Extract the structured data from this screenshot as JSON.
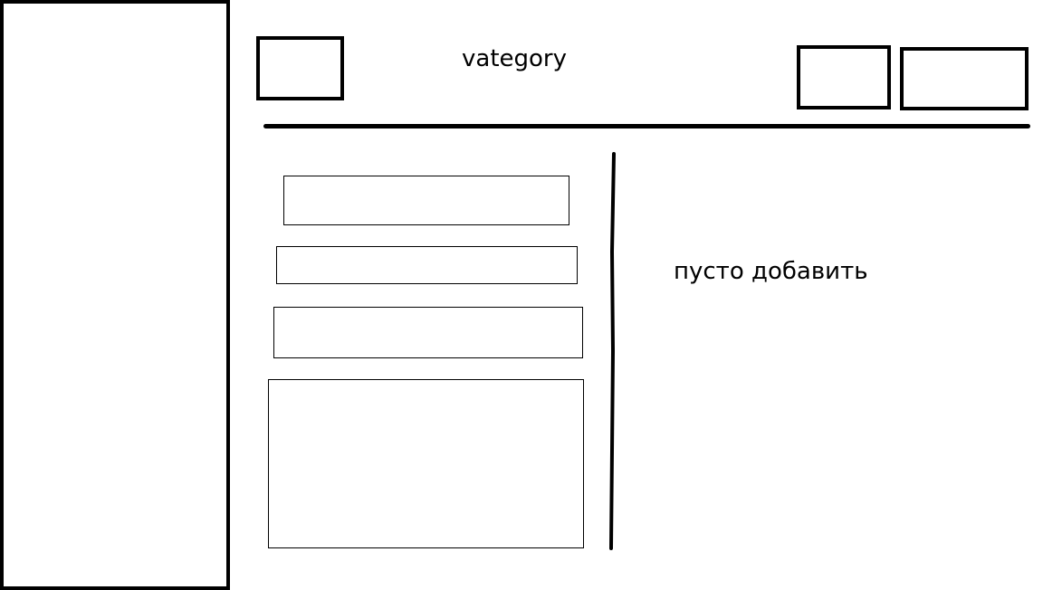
{
  "header": {
    "title": "vategory"
  },
  "content": {
    "empty_message": "пусто добавить"
  }
}
